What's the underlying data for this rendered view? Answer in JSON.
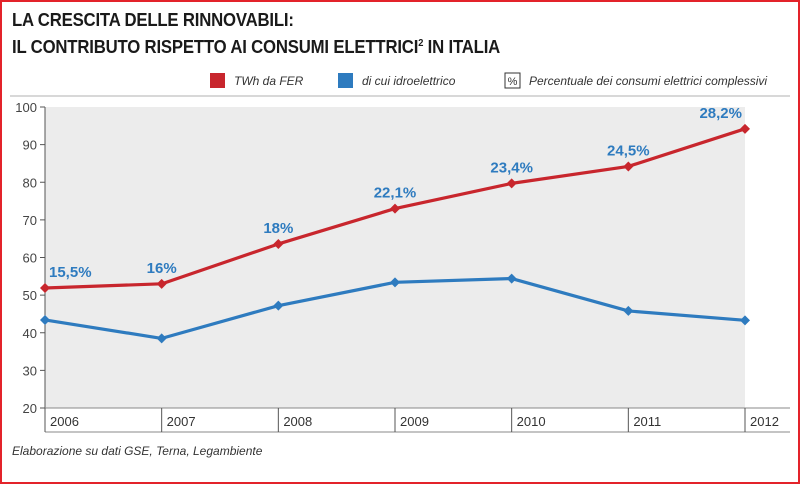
{
  "header": {
    "title_line1": "LA CRESCITA DELLE RINNOVABILI:",
    "title_line2": "IL CONTRIBUTO RISPETTO AI CONSUMI ELETTRICI",
    "title_sup": "2",
    "title_line2_end": " IN ITALIA"
  },
  "legend": {
    "items": [
      {
        "label": "TWh da FER",
        "color": "#c8262d",
        "marker": "square"
      },
      {
        "label": "di cui idroelettrico",
        "color": "#2e7bbf",
        "marker": "square"
      },
      {
        "label": "Percentuale dei consumi elettrici complessivi",
        "marker": "percent-box",
        "symbol": "%"
      }
    ]
  },
  "source": "Elaborazione su dati GSE, Terna, Legambiente",
  "chart_data": {
    "type": "line",
    "x": [
      "2006",
      "2007",
      "2008",
      "2009",
      "2010",
      "2011",
      "2012"
    ],
    "series": [
      {
        "name": "TWh da FER",
        "color": "#c8262d",
        "values": [
          51.9,
          53.0,
          63.6,
          73.0,
          79.7,
          84.2,
          94.2
        ]
      },
      {
        "name": "di cui idroelettrico",
        "color": "#2e7bbf",
        "values": [
          43.4,
          38.5,
          47.2,
          53.4,
          54.4,
          45.8,
          43.3
        ]
      }
    ],
    "data_labels": [
      "15,5%",
      "16%",
      "18%",
      "22,1%",
      "23,4%",
      "24,5%",
      "28,2%"
    ],
    "data_label_color": "#2e7bbf",
    "ylim": [
      20,
      100
    ],
    "yticks": [
      "20",
      "30",
      "40",
      "50",
      "60",
      "70",
      "80",
      "90",
      "100"
    ],
    "grid": false,
    "plot_background": "#ececec",
    "legend_position": "top"
  }
}
